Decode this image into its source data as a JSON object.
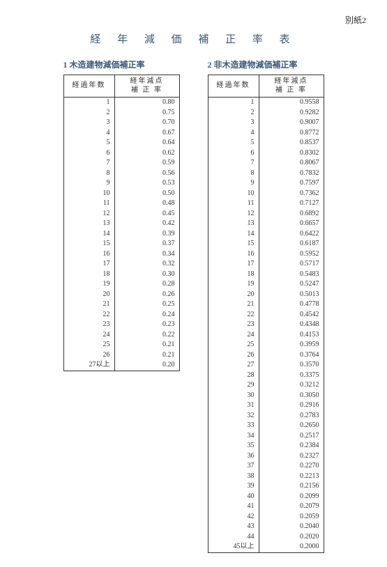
{
  "header_note": "別紙2",
  "title": "経 年 減 価 補 正 率 表",
  "left": {
    "subtitle": "1 木造建物減価補正率",
    "col_years": "経過年数",
    "col_rate_l1": "経年減点",
    "col_rate_l2": "補 正 率",
    "rows": [
      {
        "y": "1",
        "r": "0.80"
      },
      {
        "y": "2",
        "r": "0.75"
      },
      {
        "y": "3",
        "r": "0.70"
      },
      {
        "y": "4",
        "r": "0.67"
      },
      {
        "y": "5",
        "r": "0.64"
      },
      {
        "y": "6",
        "r": "0.62"
      },
      {
        "y": "7",
        "r": "0.59"
      },
      {
        "y": "8",
        "r": "0.56"
      },
      {
        "y": "9",
        "r": "0.53"
      },
      {
        "y": "10",
        "r": "0.50"
      },
      {
        "y": "11",
        "r": "0.48"
      },
      {
        "y": "12",
        "r": "0.45"
      },
      {
        "y": "13",
        "r": "0.42"
      },
      {
        "y": "14",
        "r": "0.39"
      },
      {
        "y": "15",
        "r": "0.37"
      },
      {
        "y": "16",
        "r": "0.34"
      },
      {
        "y": "17",
        "r": "0.32"
      },
      {
        "y": "18",
        "r": "0.30"
      },
      {
        "y": "19",
        "r": "0.28"
      },
      {
        "y": "20",
        "r": "0.26"
      },
      {
        "y": "21",
        "r": "0.25"
      },
      {
        "y": "22",
        "r": "0.24"
      },
      {
        "y": "23",
        "r": "0.23"
      },
      {
        "y": "24",
        "r": "0.22"
      },
      {
        "y": "25",
        "r": "0.21"
      },
      {
        "y": "26",
        "r": "0.21"
      },
      {
        "y": "27以上",
        "r": "0.20"
      }
    ]
  },
  "right": {
    "subtitle": "2 非木造建物減価補正率",
    "col_years": "経過年数",
    "col_rate_l1": "経年減点",
    "col_rate_l2": "補 正 率",
    "rows": [
      {
        "y": "1",
        "r": "0.9558"
      },
      {
        "y": "2",
        "r": "0.9282"
      },
      {
        "y": "3",
        "r": "0.9007"
      },
      {
        "y": "4",
        "r": "0.8772"
      },
      {
        "y": "5",
        "r": "0.8537"
      },
      {
        "y": "6",
        "r": "0.8302"
      },
      {
        "y": "7",
        "r": "0.8067"
      },
      {
        "y": "8",
        "r": "0.7832"
      },
      {
        "y": "9",
        "r": "0.7597"
      },
      {
        "y": "10",
        "r": "0.7362"
      },
      {
        "y": "11",
        "r": "0.7127"
      },
      {
        "y": "12",
        "r": "0.6892"
      },
      {
        "y": "13",
        "r": "0.6657"
      },
      {
        "y": "14",
        "r": "0.6422"
      },
      {
        "y": "15",
        "r": "0.6187"
      },
      {
        "y": "16",
        "r": "0.5952"
      },
      {
        "y": "17",
        "r": "0.5717"
      },
      {
        "y": "18",
        "r": "0.5483"
      },
      {
        "y": "19",
        "r": "0.5247"
      },
      {
        "y": "20",
        "r": "0.5013"
      },
      {
        "y": "21",
        "r": "0.4778"
      },
      {
        "y": "22",
        "r": "0.4542"
      },
      {
        "y": "23",
        "r": "0.4348"
      },
      {
        "y": "24",
        "r": "0.4153"
      },
      {
        "y": "25",
        "r": "0.3959"
      },
      {
        "y": "26",
        "r": "0.3764"
      },
      {
        "y": "27",
        "r": "0.3570"
      },
      {
        "y": "28",
        "r": "0.3375"
      },
      {
        "y": "29",
        "r": "0.3212"
      },
      {
        "y": "30",
        "r": "0.3050"
      },
      {
        "y": "31",
        "r": "0.2916"
      },
      {
        "y": "32",
        "r": "0.2783"
      },
      {
        "y": "33",
        "r": "0.2650"
      },
      {
        "y": "34",
        "r": "0.2517"
      },
      {
        "y": "35",
        "r": "0.2384"
      },
      {
        "y": "36",
        "r": "0.2327"
      },
      {
        "y": "37",
        "r": "0.2270"
      },
      {
        "y": "38",
        "r": "0.2213"
      },
      {
        "y": "39",
        "r": "0.2156"
      },
      {
        "y": "40",
        "r": "0.2099"
      },
      {
        "y": "41",
        "r": "0.2079"
      },
      {
        "y": "42",
        "r": "0.2059"
      },
      {
        "y": "43",
        "r": "0.2040"
      },
      {
        "y": "44",
        "r": "0.2020"
      },
      {
        "y": "45以上",
        "r": "0.2000"
      }
    ]
  }
}
